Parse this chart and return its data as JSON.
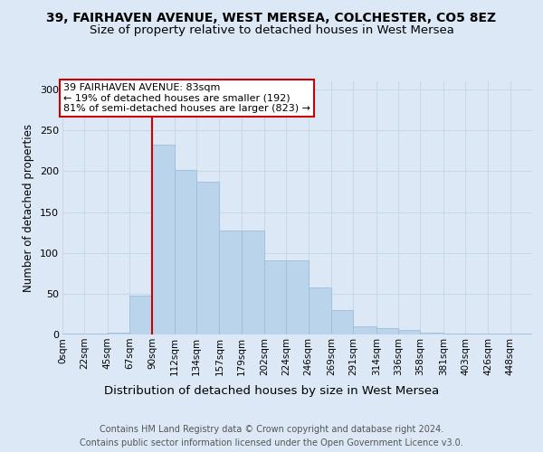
{
  "title": "39, FAIRHAVEN AVENUE, WEST MERSEA, COLCHESTER, CO5 8EZ",
  "subtitle": "Size of property relative to detached houses in West Mersea",
  "xlabel": "Distribution of detached houses by size in West Mersea",
  "ylabel": "Number of detached properties",
  "bins": [
    0,
    22,
    45,
    67,
    90,
    112,
    134,
    157,
    179,
    202,
    224,
    246,
    269,
    291,
    314,
    336,
    358,
    381,
    403,
    426,
    448,
    470
  ],
  "bin_labels": [
    "0sqm",
    "22sqm",
    "45sqm",
    "67sqm",
    "90sqm",
    "112sqm",
    "134sqm",
    "157sqm",
    "179sqm",
    "202sqm",
    "224sqm",
    "246sqm",
    "269sqm",
    "291sqm",
    "314sqm",
    "336sqm",
    "358sqm",
    "381sqm",
    "403sqm",
    "426sqm",
    "448sqm"
  ],
  "values": [
    1,
    1,
    2,
    48,
    232,
    202,
    187,
    127,
    127,
    91,
    91,
    58,
    30,
    10,
    8,
    5,
    2,
    1,
    1,
    1,
    1
  ],
  "bar_color": "#bad4eb",
  "bar_edge_color": "#a0bcd8",
  "vline_x": 90,
  "annotation_text": "39 FAIRHAVEN AVENUE: 83sqm\n← 19% of detached houses are smaller (192)\n81% of semi-detached houses are larger (823) →",
  "annotation_box_color": "white",
  "annotation_box_edge_color": "#cc0000",
  "vline_color": "#cc0000",
  "background_color": "#dce8f5",
  "ylim": [
    0,
    310
  ],
  "yticks": [
    0,
    50,
    100,
    150,
    200,
    250,
    300
  ],
  "footer_text": "Contains HM Land Registry data © Crown copyright and database right 2024.\nContains public sector information licensed under the Open Government Licence v3.0.",
  "title_fontsize": 10,
  "subtitle_fontsize": 9.5,
  "xlabel_fontsize": 9.5,
  "ylabel_fontsize": 8.5,
  "annotation_fontsize": 8,
  "footer_fontsize": 7,
  "tick_fontsize": 7.5,
  "ytick_fontsize": 8
}
